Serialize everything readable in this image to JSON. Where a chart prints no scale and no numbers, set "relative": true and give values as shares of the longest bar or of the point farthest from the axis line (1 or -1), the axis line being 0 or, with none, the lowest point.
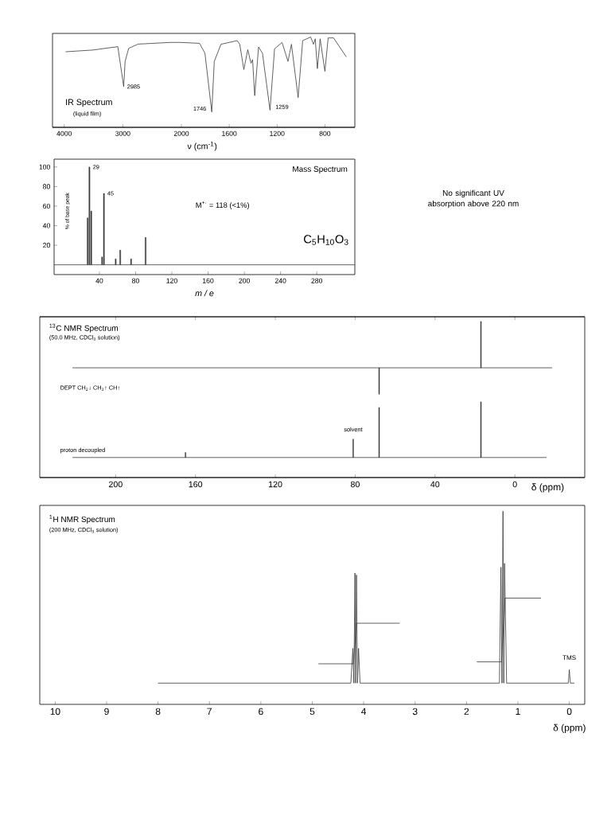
{
  "chart_data": [
    {
      "type": "line",
      "title": "IR Spectrum",
      "subtitle": "(liquid film)",
      "relative": true,
      "xlim": [
        4200,
        2000
      ],
      "xticks": [
        4000,
        3000,
        2000
      ],
      "x": [
        3977,
        3519,
        3085,
        2985,
        2960,
        2900,
        2740,
        2190,
        2000
      ],
      "values": [
        0.89,
        0.91,
        0.95,
        0.48,
        0.78,
        0.93,
        0.98,
        1.0,
        1.0
      ],
      "color": "#3a3a3a",
      "annotations": [
        {
          "text": "2985",
          "x": 2985,
          "y": 0.48
        }
      ]
    },
    {
      "type": "line",
      "xlabel": "ν (cm$^{-1}$)",
      "relative": true,
      "xlim": [
        2000,
        550
      ],
      "xticks": [
        1600,
        1200,
        800
      ],
      "x": [
        2000,
        1848,
        1803,
        1746,
        1725,
        1669,
        1534,
        1512,
        1478,
        1445,
        1418,
        1405,
        1387,
        1355,
        1322,
        1259,
        1221,
        1158,
        1109,
        1080,
        1024,
        986,
        919,
        896,
        881,
        863,
        840,
        800,
        773,
        728,
        621
      ],
      "values": [
        0.94,
        0.93,
        0.82,
        0.17,
        0.73,
        0.92,
        0.96,
        0.92,
        0.64,
        0.86,
        0.71,
        0.75,
        0.35,
        0.89,
        0.82,
        0.19,
        0.87,
        0.94,
        0.73,
        0.92,
        0.33,
        0.96,
        1.0,
        0.92,
        0.98,
        0.65,
        0.98,
        0.62,
        0.99,
        0.99,
        0.78
      ],
      "color": "#3a3a3a",
      "annotations": [
        {
          "text": "1746",
          "x": 1746,
          "y": 0.17
        },
        {
          "text": "1259",
          "x": 1259,
          "y": 0.19
        }
      ]
    },
    {
      "type": "bar",
      "title": "Mass Spectrum",
      "xlabel": "m / e",
      "ylabel": "% of base peak",
      "xlim": [
        -10,
        322
      ],
      "ylim": [
        -10,
        108
      ],
      "xticks": [
        40,
        80,
        120,
        160,
        200,
        240,
        280
      ],
      "yticks": [
        20,
        40,
        60,
        80,
        100
      ],
      "x": [
        27,
        29,
        31,
        43,
        45,
        58,
        63,
        75,
        91
      ],
      "values": [
        48,
        100,
        55,
        8,
        73,
        6,
        15,
        6,
        28
      ],
      "color": "#3a3a3a",
      "ref_lines": [
        {
          "axis": "y",
          "value": 0
        }
      ],
      "annotations": [
        {
          "text": "29",
          "x": 29,
          "y": 100
        },
        {
          "text": "45",
          "x": 45,
          "y": 73
        },
        "M$^{+·}$ = 118 (<1%)",
        "C$_{5}$H$_{10}$O$_{3}$"
      ]
    },
    {
      "type": "other",
      "annotations": [
        "No significant UV absorption above 220 nm"
      ]
    },
    {
      "type": "bar",
      "title": "$^{13}$C NMR Spectrum",
      "subtitle": "(50.0 MHz, CDCl$_{3}$ solution)",
      "relative": true,
      "xlim": [
        238,
        -35
      ],
      "xticks": [
        200,
        160,
        120,
        80,
        40,
        0
      ],
      "tick_labels": false,
      "x": [
        68,
        17
      ],
      "values": [
        -0.57,
        1.0
      ],
      "color": "#3a3a3a",
      "annotations": [
        "DEPT  CH$_{2}$↓  CH$_{3}$↑  CH↑"
      ]
    },
    {
      "type": "bar",
      "title": "proton decoupled",
      "xlabel": "δ (ppm)",
      "relative": true,
      "xlim": [
        238,
        -35
      ],
      "xticks": [
        200,
        160,
        120,
        80,
        40,
        0
      ],
      "tick_labels": "x",
      "x": [
        165,
        81,
        68,
        17
      ],
      "values": [
        0.09,
        0.33,
        0.9,
        1.0
      ],
      "color": "#3a3a3a",
      "annotations": [
        {
          "text": "solvent",
          "x": 81,
          "y": 0.33
        }
      ]
    },
    {
      "type": "line",
      "title": "$^{1}$H NMR Spectrum",
      "subtitle": "(200 MHz, CDCl$_{3}$ solution)",
      "xlabel": "δ (ppm)",
      "relative": true,
      "xlim": [
        10.3,
        -0.3
      ],
      "xticks": [
        10,
        9,
        8,
        7,
        6,
        5,
        4,
        3,
        2,
        1,
        0
      ],
      "series": [
        {
          "color": "#3a3a3a",
          "x": [
            8.0,
            4.25,
            4.21,
            4.19,
            4.17,
            4.155,
            4.14,
            4.12,
            4.1,
            4.07,
            1.36,
            1.33,
            1.31,
            1.29,
            1.275,
            1.26,
            1.22,
            0.02,
            0,
            -0.02,
            -0.1
          ],
          "values": [
            0.11,
            0.11,
            0.29,
            0.11,
            0.68,
            0.11,
            0.67,
            0.11,
            0.29,
            0.11,
            0.11,
            0.71,
            0.11,
            1.0,
            0.11,
            0.73,
            0.11,
            0.11,
            0.18,
            0.11,
            0.11
          ]
        },
        {
          "color": "#3a3a3a",
          "x": [
            4.88,
            4.2,
            4.14,
            3.3
          ],
          "values": [
            0.21,
            0.21,
            0.42,
            0.42
          ]
        },
        {
          "color": "#3a3a3a",
          "x": [
            1.8,
            1.32,
            1.25,
            0.55
          ],
          "values": [
            0.22,
            0.22,
            0.55,
            0.55
          ]
        }
      ],
      "annotations": [
        {
          "text": "TMS",
          "x": 0,
          "y": 0.18
        }
      ]
    }
  ]
}
